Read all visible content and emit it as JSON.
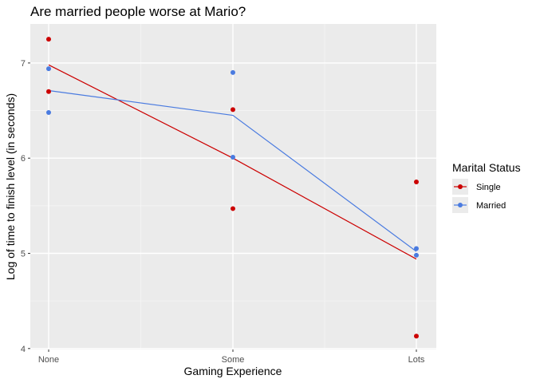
{
  "chart_data": {
    "type": "scatter",
    "title": "Are married people worse at Mario?",
    "xlabel": "Gaming Experience",
    "ylabel": "Log of time to finish level (in seconds)",
    "categories": [
      "None",
      "Some",
      "Lots"
    ],
    "yticks": [
      4,
      5,
      6,
      7
    ],
    "ylim": [
      3.99,
      7.41
    ],
    "grid": true,
    "legend": {
      "title": "Marital Status",
      "position": "right",
      "entries": [
        "Single",
        "Married"
      ]
    },
    "series": [
      {
        "name": "Single",
        "color": "#cc0000",
        "points": [
          {
            "x": "None",
            "y": 7.25
          },
          {
            "x": "None",
            "y": 6.7
          },
          {
            "x": "Some",
            "y": 6.51
          },
          {
            "x": "Some",
            "y": 5.47
          },
          {
            "x": "Lots",
            "y": 5.75
          },
          {
            "x": "Lots",
            "y": 4.13
          }
        ],
        "line": [
          {
            "x": "None",
            "y": 6.98
          },
          {
            "x": "Some",
            "y": 6.0
          },
          {
            "x": "Lots",
            "y": 4.94
          }
        ]
      },
      {
        "name": "Married",
        "color": "#4a7be0",
        "points": [
          {
            "x": "None",
            "y": 6.94
          },
          {
            "x": "None",
            "y": 6.48
          },
          {
            "x": "Some",
            "y": 6.9
          },
          {
            "x": "Some",
            "y": 6.01
          },
          {
            "x": "Lots",
            "y": 5.05
          },
          {
            "x": "Lots",
            "y": 4.98
          }
        ],
        "line": [
          {
            "x": "None",
            "y": 6.71
          },
          {
            "x": "Some",
            "y": 6.45
          },
          {
            "x": "Lots",
            "y": 5.02
          }
        ]
      }
    ]
  },
  "colors": {
    "panel_background": "#ebebeb",
    "grid_major": "#ffffff",
    "grid_minor": "#f5f5f5",
    "tick_text": "#4d4d4d"
  }
}
